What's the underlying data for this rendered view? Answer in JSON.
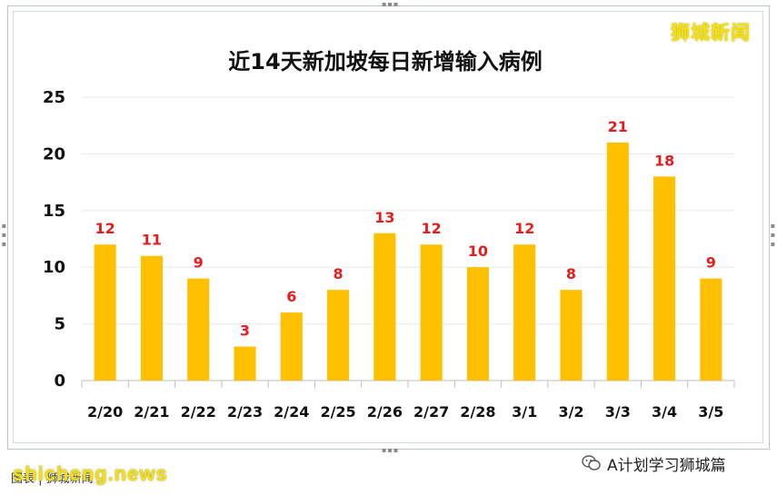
{
  "watermark": {
    "brand": "狮城新闻",
    "site": "shicheng.news",
    "footer_left": "图表 | 狮城新闻",
    "account": "A计划学习狮城篇"
  },
  "colors": {
    "bar": "#FFC000",
    "data_label": "#E41E1E",
    "grid": "#e8e8e8",
    "axis_text": "#111111"
  },
  "chart_data": {
    "type": "bar",
    "title": "近14天新加坡每日新增输入病例",
    "xlabel": "",
    "ylabel": "",
    "categories": [
      "2/20",
      "2/21",
      "2/22",
      "2/23",
      "2/24",
      "2/25",
      "2/26",
      "2/27",
      "2/28",
      "3/1",
      "3/2",
      "3/3",
      "3/4",
      "3/5"
    ],
    "values": [
      12,
      11,
      9,
      3,
      6,
      8,
      13,
      12,
      10,
      12,
      8,
      21,
      18,
      9
    ],
    "ylim": [
      0,
      25
    ],
    "yticks": [
      0,
      5,
      10,
      15,
      20,
      25
    ],
    "grid": true,
    "legend": "none"
  }
}
